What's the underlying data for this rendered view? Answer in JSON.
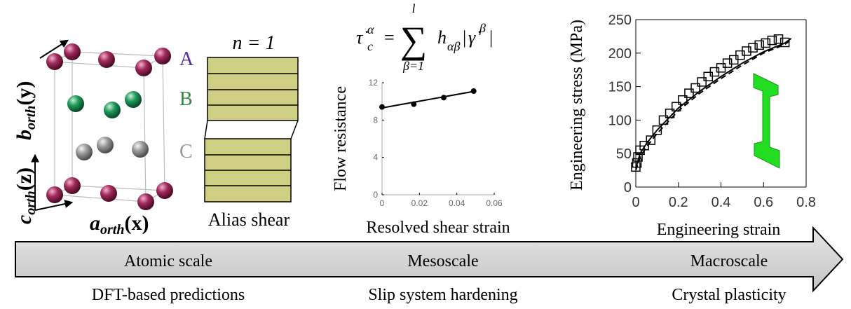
{
  "crystal": {
    "axes": [
      {
        "symbol": "b",
        "subscript": "orth",
        "axis": "(y)"
      },
      {
        "symbol": "c",
        "subscript": "orth",
        "axis": "(z)"
      },
      {
        "symbol": "a",
        "subscript": "orth",
        "axis": "(x)"
      }
    ],
    "layers": [
      "A",
      "B",
      "C"
    ]
  },
  "stacking": {
    "title": "n = 1",
    "caption": "Alias shear"
  },
  "formula": {
    "lhs": {
      "base": "τ̇",
      "sub": "c",
      "sup": "α"
    },
    "equals": "=",
    "sum": {
      "symbol": "∑",
      "lower": "β=1",
      "upper": "l"
    },
    "term": {
      "base": "h",
      "sub": "αβ"
    },
    "abs": {
      "open": "|",
      "base": "γ̇",
      "sup": "β",
      "close": "|"
    }
  },
  "chart_data": [
    {
      "type": "scatter",
      "xlabel": "Resolved shear strain",
      "ylabel": "Flow resistance",
      "xlim": [
        0,
        0.06
      ],
      "ylim": [
        0,
        12
      ],
      "xticks": [
        0,
        0.02,
        0.04,
        0.06
      ],
      "yticks": [
        0,
        4,
        8,
        12
      ],
      "series": [
        {
          "color": "#000000",
          "marker": "circle",
          "x": [
            0,
            0.017,
            0.033,
            0.049
          ],
          "values": [
            9.4,
            9.7,
            10.4,
            11.1
          ]
        },
        {
          "color": "#000000",
          "marker": "none",
          "x": [
            0,
            0.05
          ],
          "values": [
            9.3,
            11.1
          ]
        }
      ]
    },
    {
      "type": "scatter",
      "xlabel": "Engineering strain",
      "ylabel": "Engineering stress (MPa)",
      "xlim": [
        0,
        0.8
      ],
      "ylim": [
        0,
        250
      ],
      "xticks": [
        0,
        0.2,
        0.4,
        0.6,
        0.8
      ],
      "yticks": [
        0,
        50,
        100,
        150,
        200,
        250
      ],
      "series": [
        {
          "color": "#000000",
          "marker": "square",
          "x": [
            0,
            0.005,
            0.01,
            0.02,
            0.04,
            0.07,
            0.1,
            0.13,
            0.16,
            0.19,
            0.22,
            0.25,
            0.28,
            0.31,
            0.34,
            0.37,
            0.4,
            0.43,
            0.46,
            0.49,
            0.52,
            0.55,
            0.58,
            0.61,
            0.64,
            0.67,
            0.7
          ],
          "values": [
            30,
            36,
            45,
            55,
            62,
            70,
            85,
            100,
            110,
            120,
            130,
            140,
            148,
            157,
            165,
            172,
            178,
            185,
            190,
            197,
            203,
            208,
            212,
            215,
            219,
            221,
            216
          ]
        },
        {
          "color": "#000000",
          "marker": "none",
          "dash": false,
          "x": [
            0,
            0.02,
            0.05,
            0.1,
            0.2,
            0.3,
            0.4,
            0.5,
            0.6,
            0.7,
            0.73
          ],
          "values": [
            28,
            50,
            65,
            85,
            118,
            143,
            165,
            185,
            202,
            215,
            222
          ]
        },
        {
          "color": "#000000",
          "marker": "none",
          "dash": true,
          "x": [
            0,
            0.02,
            0.05,
            0.1,
            0.2,
            0.3,
            0.4,
            0.5,
            0.6,
            0.7,
            0.73
          ],
          "values": [
            25,
            44,
            60,
            80,
            114,
            140,
            162,
            182,
            200,
            213,
            220
          ]
        }
      ]
    }
  ],
  "scale_arrow": {
    "stages": [
      {
        "label": "Atomic scale",
        "caption": "DFT-based predictions"
      },
      {
        "label": "Mesoscale",
        "caption": "Slip system hardening"
      },
      {
        "label": "Macroscale",
        "caption": "Crystal plasticity"
      }
    ]
  }
}
